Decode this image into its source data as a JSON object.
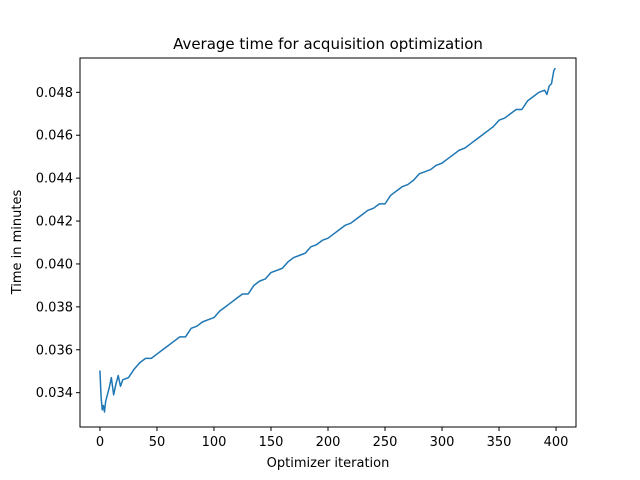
{
  "chart_data": {
    "type": "line",
    "title": "Average time for acquisition optimization",
    "xlabel": "Optimizer iteration",
    "ylabel": "Time in minutes",
    "xlim": [
      -17.5,
      417.5
    ],
    "ylim": [
      0.0324,
      0.0496
    ],
    "xticks": [
      0,
      50,
      100,
      150,
      200,
      250,
      300,
      350,
      400
    ],
    "xtick_labels": [
      "0",
      "50",
      "100",
      "150",
      "200",
      "250",
      "300",
      "350",
      "400"
    ],
    "yticks": [
      0.034,
      0.036,
      0.038,
      0.04,
      0.042,
      0.044,
      0.046,
      0.048
    ],
    "ytick_labels": [
      "0.034",
      "0.036",
      "0.038",
      "0.040",
      "0.042",
      "0.044",
      "0.046",
      "0.048"
    ],
    "grid": false,
    "legend": "none",
    "series": [
      {
        "color": "#1f77b4",
        "x": [
          0,
          1,
          2,
          3,
          4,
          5,
          6,
          8,
          10,
          12,
          14,
          16,
          18,
          20,
          25,
          30,
          35,
          40,
          45,
          50,
          55,
          60,
          65,
          70,
          75,
          80,
          85,
          90,
          95,
          100,
          105,
          110,
          115,
          120,
          125,
          130,
          135,
          140,
          145,
          150,
          155,
          160,
          165,
          170,
          175,
          180,
          185,
          190,
          195,
          200,
          205,
          210,
          215,
          220,
          225,
          230,
          235,
          240,
          245,
          250,
          255,
          260,
          265,
          270,
          275,
          280,
          285,
          290,
          295,
          300,
          305,
          310,
          315,
          320,
          325,
          330,
          335,
          340,
          345,
          350,
          355,
          360,
          365,
          370,
          375,
          380,
          385,
          390,
          392,
          394,
          396,
          398,
          399
        ],
        "y": [
          0.035,
          0.0338,
          0.0332,
          0.0334,
          0.0331,
          0.0336,
          0.0338,
          0.0342,
          0.0347,
          0.0339,
          0.0344,
          0.0348,
          0.0343,
          0.0346,
          0.0347,
          0.0351,
          0.0354,
          0.0356,
          0.0356,
          0.0358,
          0.036,
          0.0362,
          0.0364,
          0.0366,
          0.0366,
          0.037,
          0.0371,
          0.0373,
          0.0374,
          0.0375,
          0.0378,
          0.038,
          0.0382,
          0.0384,
          0.0386,
          0.0386,
          0.039,
          0.0392,
          0.0393,
          0.0396,
          0.0397,
          0.0398,
          0.0401,
          0.0403,
          0.0404,
          0.0405,
          0.0408,
          0.0409,
          0.0411,
          0.0412,
          0.0414,
          0.0416,
          0.0418,
          0.0419,
          0.0421,
          0.0423,
          0.0425,
          0.0426,
          0.0428,
          0.0428,
          0.0432,
          0.0434,
          0.0436,
          0.0437,
          0.0439,
          0.0442,
          0.0443,
          0.0444,
          0.0446,
          0.0447,
          0.0449,
          0.0451,
          0.0453,
          0.0454,
          0.0456,
          0.0458,
          0.046,
          0.0462,
          0.0464,
          0.0467,
          0.0468,
          0.047,
          0.0472,
          0.0472,
          0.0476,
          0.0478,
          0.048,
          0.0481,
          0.0479,
          0.0483,
          0.0484,
          0.049,
          0.0491
        ]
      }
    ]
  }
}
